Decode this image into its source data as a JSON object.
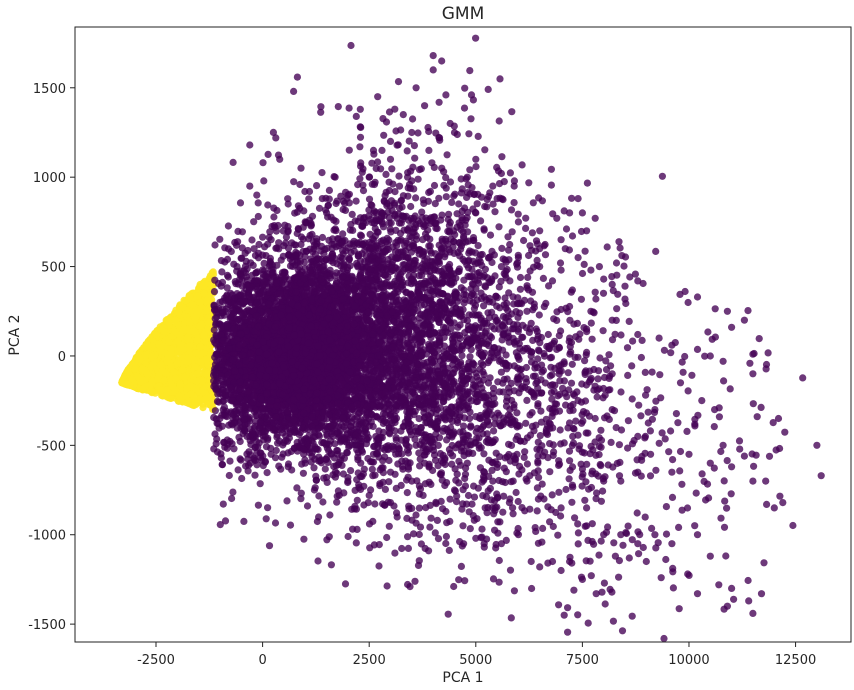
{
  "chart_data": {
    "type": "scatter",
    "title": "GMM",
    "xlabel": "PCA 1",
    "ylabel": "PCA 2",
    "xlim": [
      -4400,
      13800
    ],
    "ylim": [
      -1600,
      1840
    ],
    "xticks": [
      -2500,
      0,
      2500,
      5000,
      7500,
      10000,
      12500
    ],
    "yticks": [
      -1500,
      -1000,
      -500,
      0,
      500,
      1000,
      1500
    ],
    "grid": false,
    "legend": "none",
    "series": [
      {
        "color": "#440154",
        "opacity": 0.78,
        "points": [
          [
            -1000,
            300
          ],
          [
            -600,
            500
          ],
          [
            -200,
            600
          ],
          [
            200,
            650
          ],
          [
            600,
            700
          ],
          [
            1000,
            750
          ],
          [
            1500,
            800
          ],
          [
            2000,
            900
          ],
          [
            2500,
            1000
          ],
          [
            3000,
            1100
          ],
          [
            3500,
            1250
          ],
          [
            3800,
            1400
          ],
          [
            4000,
            1600
          ],
          [
            4000,
            1680
          ],
          [
            4200,
            1650
          ],
          [
            3600,
            1500
          ],
          [
            4300,
            1460
          ],
          [
            4900,
            1460
          ],
          [
            3300,
            1350
          ],
          [
            2700,
            1450
          ],
          [
            3100,
            1380
          ],
          [
            4500,
            1250
          ],
          [
            4400,
            1300
          ],
          [
            3000,
            1200
          ],
          [
            2600,
            1150
          ],
          [
            3900,
            1150
          ],
          [
            4200,
            1050
          ],
          [
            5000,
            1100
          ],
          [
            4800,
            1000
          ],
          [
            5400,
            950
          ],
          [
            5900,
            950
          ],
          [
            5500,
            880
          ],
          [
            5000,
            800
          ],
          [
            4600,
            850
          ],
          [
            1700,
            1000
          ],
          [
            1400,
            880
          ],
          [
            900,
            1050
          ],
          [
            400,
            1100
          ],
          [
            -300,
            1180
          ],
          [
            -300,
            950
          ],
          [
            -100,
            780
          ],
          [
            600,
            850
          ],
          [
            1100,
            920
          ],
          [
            2300,
            1080
          ],
          [
            2800,
            1150
          ],
          [
            3400,
            1000
          ],
          [
            6000,
            750
          ],
          [
            6500,
            700
          ],
          [
            7000,
            650
          ],
          [
            7400,
            880
          ],
          [
            7500,
            800
          ],
          [
            7200,
            800
          ],
          [
            6900,
            770
          ],
          [
            7800,
            770
          ],
          [
            7600,
            700
          ],
          [
            7100,
            600
          ],
          [
            6500,
            600
          ],
          [
            6000,
            550
          ],
          [
            5600,
            500
          ],
          [
            5200,
            450
          ],
          [
            6500,
            500
          ],
          [
            7000,
            480
          ],
          [
            7700,
            480
          ],
          [
            8000,
            430
          ],
          [
            8200,
            400
          ],
          [
            8500,
            390
          ],
          [
            8800,
            420
          ],
          [
            8300,
            520
          ],
          [
            7900,
            500
          ],
          [
            7400,
            550
          ],
          [
            6800,
            420
          ],
          [
            6200,
            380
          ],
          [
            5800,
            420
          ],
          [
            5400,
            300
          ],
          [
            6200,
            250
          ],
          [
            7000,
            260
          ],
          [
            7700,
            250
          ],
          [
            8200,
            200
          ],
          [
            7600,
            150
          ],
          [
            7200,
            100
          ],
          [
            6700,
            120
          ],
          [
            6000,
            150
          ],
          [
            5500,
            200
          ],
          [
            5000,
            100
          ],
          [
            6300,
            0
          ],
          [
            7000,
            -50
          ],
          [
            7600,
            20
          ],
          [
            8200,
            -100
          ],
          [
            8800,
            120
          ],
          [
            9300,
            100
          ],
          [
            9600,
            60
          ],
          [
            10200,
            330
          ],
          [
            10500,
            0
          ],
          [
            10800,
            -30
          ],
          [
            11000,
            160
          ],
          [
            11300,
            200
          ],
          [
            11500,
            10
          ],
          [
            10900,
            250
          ],
          [
            10300,
            -250
          ],
          [
            10600,
            -300
          ],
          [
            11500,
            -100
          ],
          [
            9800,
            -150
          ],
          [
            9200,
            -300
          ],
          [
            8800,
            -450
          ],
          [
            8200,
            -300
          ],
          [
            7800,
            -350
          ],
          [
            7400,
            -250
          ],
          [
            6800,
            -300
          ],
          [
            6300,
            -200
          ],
          [
            5800,
            -300
          ],
          [
            5300,
            -250
          ],
          [
            4800,
            -200
          ],
          [
            4800,
            -600
          ],
          [
            5400,
            -700
          ],
          [
            5800,
            -800
          ],
          [
            6200,
            -700
          ],
          [
            6600,
            -800
          ],
          [
            7000,
            -850
          ],
          [
            7600,
            -850
          ],
          [
            8000,
            -700
          ],
          [
            8400,
            -700
          ],
          [
            8800,
            -650
          ],
          [
            9100,
            -550
          ],
          [
            9600,
            -650
          ],
          [
            10000,
            -550
          ],
          [
            10500,
            -600
          ],
          [
            10800,
            -500
          ],
          [
            11000,
            -620
          ],
          [
            11300,
            -560
          ],
          [
            11500,
            -700
          ],
          [
            11800,
            -700
          ],
          [
            12000,
            -850
          ],
          [
            12200,
            -820
          ],
          [
            12100,
            -350
          ],
          [
            11600,
            -340
          ],
          [
            13000,
            -500
          ],
          [
            13100,
            -670
          ],
          [
            10200,
            -1000
          ],
          [
            10500,
            -1120
          ],
          [
            10700,
            -1280
          ],
          [
            11000,
            -1300
          ],
          [
            11400,
            -1370
          ],
          [
            11700,
            -1330
          ],
          [
            11500,
            -1440
          ],
          [
            10900,
            -1400
          ],
          [
            10200,
            -1330
          ],
          [
            9600,
            -1050
          ],
          [
            9200,
            -1000
          ],
          [
            8800,
            -1050
          ],
          [
            8400,
            -1000
          ],
          [
            8000,
            -1000
          ],
          [
            7600,
            -950
          ],
          [
            7200,
            -1150
          ],
          [
            7000,
            -1200
          ],
          [
            6800,
            -1150
          ],
          [
            6500,
            -1180
          ],
          [
            6300,
            -1150
          ],
          [
            6000,
            -1000
          ],
          [
            5600,
            -1050
          ],
          [
            5200,
            -1070
          ],
          [
            5000,
            -1020
          ],
          [
            4700,
            -950
          ],
          [
            4300,
            -870
          ],
          [
            4100,
            -920
          ],
          [
            4500,
            -750
          ],
          [
            3800,
            -600
          ],
          [
            3500,
            -700
          ],
          [
            3000,
            -650
          ],
          [
            2600,
            -550
          ],
          [
            2300,
            -600
          ],
          [
            2000,
            -700
          ],
          [
            1500,
            -680
          ],
          [
            1000,
            -600
          ],
          [
            600,
            -620
          ],
          [
            200,
            -550
          ],
          [
            -300,
            -450
          ],
          [
            -700,
            -380
          ],
          [
            -1000,
            -350
          ],
          [
            2500,
            -780
          ],
          [
            3000,
            -820
          ],
          [
            3600,
            -500
          ],
          [
            7300,
            -1310
          ],
          [
            7500,
            -1250
          ],
          [
            8600,
            -1130
          ],
          [
            9000,
            -1150
          ]
        ],
        "regions": [
          {
            "cx": 600,
            "cy": 0,
            "sx": 950,
            "sy": 220,
            "n": 3000
          },
          {
            "cx": 1200,
            "cy": 0,
            "sx": 1500,
            "sy": 300,
            "n": 2400
          },
          {
            "cx": 2800,
            "cy": 150,
            "sx": 1700,
            "sy": 420,
            "n": 1500
          },
          {
            "cx": 3800,
            "cy": 450,
            "sx": 1300,
            "sy": 420,
            "n": 700
          },
          {
            "cx": 4500,
            "cy": -350,
            "sx": 1700,
            "sy": 380,
            "n": 600
          },
          {
            "cx": 6600,
            "cy": -350,
            "sx": 1600,
            "sy": 480,
            "n": 450
          },
          {
            "cx": 9400,
            "cy": -500,
            "sx": 1700,
            "sy": 480,
            "n": 160
          }
        ]
      },
      {
        "color": "#fde725",
        "opacity": 0.9,
        "regions": [
          {
            "shape": "wedge",
            "xmin": -3300,
            "xmax": -1150,
            "yapex": -150,
            "ytop": 480,
            "ybottom": -310,
            "n": 2200
          }
        ]
      }
    ]
  }
}
